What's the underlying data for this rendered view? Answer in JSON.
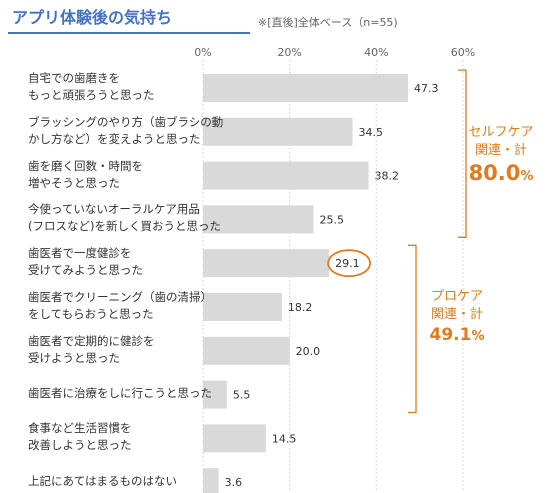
{
  "title": "アプリ体験後の気持ち",
  "subtitle": "※[直後]全体ベース（n=55)",
  "colors": {
    "title": "#4472c4",
    "bar": "#d9d9d9",
    "accent": "#e07b1f",
    "grid": "#d9d9d9"
  },
  "chart_data": {
    "type": "bar",
    "orientation": "horizontal",
    "categories": [
      [
        "自宅での歯磨きを",
        "もっと頑張ろうと思った"
      ],
      [
        "ブラッシングのやり方（歯ブラシの動",
        "かし方など）を変えようと思った"
      ],
      [
        "歯を磨く回数・時間を",
        "増やそうと思った"
      ],
      [
        "今使っていないオーラルケア用品",
        "(フロスなど)を新しく買おうと思った"
      ],
      [
        "歯医者で一度健診を",
        "受けてみようと思った"
      ],
      [
        "歯医者でクリーニング（歯の清掃）",
        "をしてもらおうと思った"
      ],
      [
        "歯医者で定期的に健診を",
        "受けようと思った"
      ],
      [
        "歯医者に治療をしに行こうと思った"
      ],
      [
        "食事など生活習慣を",
        "改善しようと思った"
      ],
      [
        "上記にあてはまるものはない"
      ]
    ],
    "values": [
      47.3,
      34.5,
      38.2,
      25.5,
      29.1,
      18.2,
      20.0,
      5.5,
      14.5,
      3.6
    ],
    "value_labels": [
      "47.3",
      "34.5",
      "38.2",
      "25.5",
      "29.1",
      "18.2",
      "20.0",
      "5.5",
      "14.5",
      "3.6"
    ],
    "x_ticks": [
      "0%",
      "20%",
      "40%",
      "60%"
    ],
    "xlim": [
      0,
      60
    ],
    "grid": true,
    "highlighted_index": 4,
    "groups": [
      {
        "name_line1": "セルフケア",
        "name_line2": "関連・計",
        "total": "80.0",
        "unit": "%",
        "range": [
          0,
          3
        ]
      },
      {
        "name_line1": "プロケア",
        "name_line2": "関連・計",
        "total": "49.1",
        "unit": "%",
        "range": [
          4,
          7
        ]
      }
    ]
  }
}
